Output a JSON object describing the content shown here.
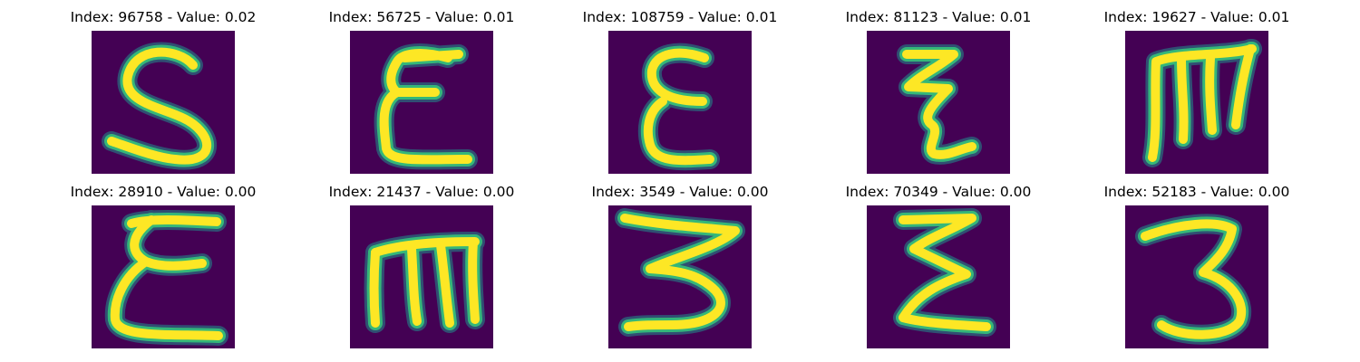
{
  "colors": {
    "background": "#440154",
    "stroke_core": "#fde725",
    "stroke_edge": "#35b779",
    "stroke_halo": "#21908d"
  },
  "panels": [
    {
      "title": "Index: 96758 - Value: 0.02",
      "glyph": "S"
    },
    {
      "title": "Index: 56725 - Value: 0.01",
      "glyph": "ε"
    },
    {
      "title": "Index: 108759 - Value: 0.01",
      "glyph": "ε"
    },
    {
      "title": "Index: 81123 - Value: 0.01",
      "glyph": "Ƶ"
    },
    {
      "title": "Index: 19627 - Value: 0.01",
      "glyph": "m"
    },
    {
      "title": "Index: 28910 - Value: 0.00",
      "glyph": "ε"
    },
    {
      "title": "Index: 21437 - Value: 0.00",
      "glyph": "m"
    },
    {
      "title": "Index: 3549 - Value: 0.00",
      "glyph": "3"
    },
    {
      "title": "Index: 70349 - Value: 0.00",
      "glyph": "Ƶ"
    },
    {
      "title": "Index: 52183 - Value: 0.00",
      "glyph": "3"
    }
  ]
}
